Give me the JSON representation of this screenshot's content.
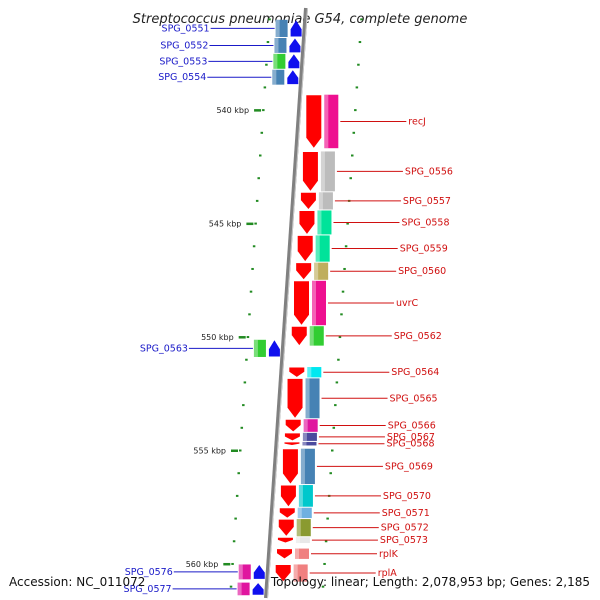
{
  "title": "Streptococcus pneumoniae G54, complete genome",
  "footer": {
    "accession": "Accession: NC_011072",
    "summary": "Topology: linear; Length: 2,078,953 bp; Genes: 2,185"
  },
  "scale": {
    "start_kbp": 535.5,
    "end_kbp": 561.5,
    "tick_labels": [
      {
        "kbp": 535,
        "label": ""
      },
      {
        "kbp": 540,
        "label": "540 kbp"
      },
      {
        "kbp": 545,
        "label": "545 kbp"
      },
      {
        "kbp": 550,
        "label": "550 kbp"
      },
      {
        "kbp": 555,
        "label": "555 kbp"
      },
      {
        "kbp": 560,
        "label": "560 kbp"
      }
    ]
  },
  "colors": {
    "backbone": "#808080",
    "left_label": "#1a1ac8",
    "right_label": "#d01010",
    "tick": "#228b22"
  },
  "genes_left": [
    {
      "label": "SPG_0551",
      "start": 536.0,
      "end": 536.8,
      "color": "#4682b4",
      "strand": "-"
    },
    {
      "label": "SPG_0552",
      "start": 536.8,
      "end": 537.5,
      "color": "#4682b4",
      "strand": "-"
    },
    {
      "label": "SPG_0553",
      "start": 537.5,
      "end": 538.2,
      "color": "#32cd32",
      "strand": "-"
    },
    {
      "label": "SPG_0554",
      "start": 538.2,
      "end": 538.9,
      "color": "#4682b4",
      "strand": "-"
    },
    {
      "label": "SPG_0563",
      "start": 550.1,
      "end": 550.9,
      "color": "#32cd32",
      "strand": "-"
    },
    {
      "label": "SPG_0576",
      "start": 560.0,
      "end": 560.7,
      "color": "#e0169f",
      "strand": "-"
    },
    {
      "label": "SPG_0577",
      "start": 560.8,
      "end": 561.4,
      "color": "#e0169f",
      "strand": "-"
    }
  ],
  "genes_right": [
    {
      "label": "recJ",
      "start": 539.3,
      "end": 541.7,
      "color": "#ee1090",
      "strand": "+"
    },
    {
      "label": "SPG_0556",
      "start": 541.8,
      "end": 543.6,
      "color": "#bcbcbc",
      "strand": "+"
    },
    {
      "label": "SPG_0557",
      "start": 543.6,
      "end": 544.4,
      "color": "#bcbcbc",
      "strand": "+"
    },
    {
      "label": "SPG_0558",
      "start": 544.4,
      "end": 545.5,
      "color": "#00e39a",
      "strand": "+"
    },
    {
      "label": "SPG_0559",
      "start": 545.5,
      "end": 546.7,
      "color": "#00e39a",
      "strand": "+"
    },
    {
      "label": "SPG_0560",
      "start": 546.7,
      "end": 547.5,
      "color": "#bfae5d",
      "strand": "+"
    },
    {
      "label": "uvrC",
      "start": 547.5,
      "end": 549.5,
      "color": "#ee1090",
      "strand": "+"
    },
    {
      "label": "SPG_0562",
      "start": 549.5,
      "end": 550.4,
      "color": "#32cd32",
      "strand": "+"
    },
    {
      "label": "SPG_0564",
      "start": 551.3,
      "end": 551.8,
      "color": "#00e8f0",
      "strand": "-"
    },
    {
      "label": "SPG_0565",
      "start": 551.8,
      "end": 553.6,
      "color": "#4682b4",
      "strand": "-"
    },
    {
      "label": "SPG_0566",
      "start": 553.6,
      "end": 554.2,
      "color": "#e0169f",
      "strand": "-"
    },
    {
      "label": "SPG_0567",
      "start": 554.2,
      "end": 554.6,
      "color": "#4a4a9e",
      "strand": "-"
    },
    {
      "label": "SPG_0568",
      "start": 554.6,
      "end": 554.8,
      "color": "#4a4a9e",
      "strand": "-"
    },
    {
      "label": "SPG_0569",
      "start": 554.9,
      "end": 556.5,
      "color": "#4682b4",
      "strand": "-"
    },
    {
      "label": "SPG_0570",
      "start": 556.5,
      "end": 557.5,
      "color": "#00c8cc",
      "strand": "-"
    },
    {
      "label": "SPG_0571",
      "start": 557.5,
      "end": 558.0,
      "color": "#6fb0e0",
      "strand": "-"
    },
    {
      "label": "SPG_0572",
      "start": 558.0,
      "end": 558.8,
      "color": "#8a9a30",
      "strand": "-"
    },
    {
      "label": "SPG_0573",
      "start": 558.8,
      "end": 559.1,
      "color": "#e8e8e8",
      "strand": "-"
    },
    {
      "label": "rplK",
      "start": 559.3,
      "end": 559.8,
      "color": "#f08080",
      "strand": "-"
    },
    {
      "label": "rplA",
      "start": 560.0,
      "end": 560.8,
      "color": "#f08080",
      "strand": "-"
    }
  ]
}
